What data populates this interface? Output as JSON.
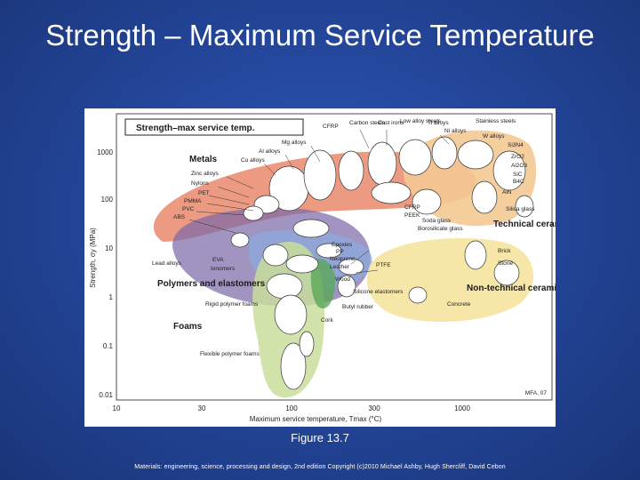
{
  "slide": {
    "title": "Strength – Maximum Service Temperature",
    "caption": "Figure 13.7",
    "copyright": "Materials: engineering, science, processing and design, 2nd edition Copyright (c)2010 Michael Ashby, Hugh Shercliff, David Cebon"
  },
  "chart": {
    "chart_title": "Strength–max service temp.",
    "xlabel": "Maximum service temperature, Tmax (°C)",
    "ylabel": "Strength, σy (MPa)",
    "x_ticks": [
      "10",
      "30",
      "100",
      "300",
      "1000"
    ],
    "y_ticks": [
      "1000",
      "100",
      "10",
      "1",
      "0.1",
      "0.01"
    ],
    "credit": "MFA, 07",
    "families": {
      "metals": "Metals",
      "technical_ceramics": "Technical ceramics",
      "polymers": "Polymers and elastomers",
      "foams": "Foams",
      "non_technical_ceramics": "Non-technical ceramics"
    },
    "labels": {
      "mg": "Mg alloys",
      "al": "Al alloys",
      "cu": "Cu alloys",
      "zn": "Zinc alloys",
      "nylons": "Nylons",
      "pet": "PET",
      "pmma": "PMMA",
      "pvc": "PVC",
      "abs": "ABS",
      "lead": "Lead alloys",
      "eva": "EVA",
      "ionomers": "Ionomers",
      "rigid_foams": "Rigid polymer foams",
      "flex_foams": "Flexible polymer foams",
      "cfrp_top": "CFRP",
      "carbon_steels": "Carbon steels",
      "cast_irons": "Cast irons",
      "low_alloy": "Low alloy steels",
      "ti": "Ti alloys",
      "stainless": "Stainless steels",
      "ni": "Ni alloys",
      "w": "W alloys",
      "si3n4": "Si3N4",
      "zro2": "ZrO2",
      "al2o3": "Al2O3",
      "sic": "SiC",
      "b4c": "B4C",
      "aln": "AlN",
      "silica": "Silica glass",
      "cfrp": "CFRP",
      "peek": "PEEK",
      "soda": "Soda glass",
      "borosilicate": "Borosilicate glass",
      "epoxies": "Epoxies",
      "pp": "PP",
      "neoprene": "Neoprene",
      "leather": "Leather",
      "ptfe": "PTFE",
      "wood": "Wood",
      "silicone": "Silicone elastomers",
      "butyl": "Butyl rubber",
      "brick": "Brick",
      "stone": "Stone",
      "concrete": "Concrete",
      "cork": "Cork"
    }
  }
}
